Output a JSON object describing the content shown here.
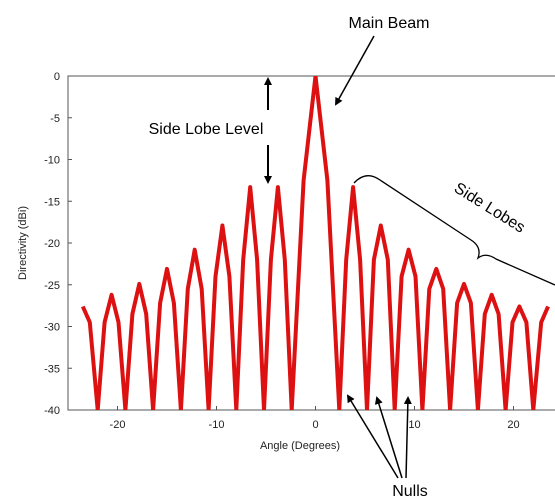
{
  "chart_data": {
    "type": "line",
    "title": "",
    "xlabel": "Angle (Degrees)",
    "ylabel": "Directivity (dBi)",
    "xlim": [
      -25,
      25
    ],
    "ylim": [
      -40,
      0
    ],
    "xticks": [
      -20,
      -10,
      0,
      10,
      20
    ],
    "yticks": [
      0,
      -5,
      -10,
      -15,
      -20,
      -25,
      -30,
      -35,
      -40
    ],
    "grid": false,
    "series": [
      {
        "color": "#dd1111",
        "x": [
          -23.5,
          -22.8,
          -22,
          -21.3,
          -20.6,
          -19.9,
          -19.2,
          -18.5,
          -17.8,
          -17.1,
          -16.4,
          -15.7,
          -15,
          -14.3,
          -13.6,
          -12.9,
          -12.2,
          -11.5,
          -10.8,
          -10.1,
          -9.4,
          -8.7,
          -8,
          -7.3,
          -6.6,
          -5.9,
          -5.2,
          -4.5,
          -3.8,
          -3.1,
          -2.4,
          -1.2,
          0,
          1.2,
          2.4,
          3.1,
          3.8,
          4.5,
          5.2,
          5.9,
          6.6,
          7.3,
          8,
          8.7,
          9.4,
          10.1,
          10.8,
          11.5,
          12.2,
          12.9,
          13.6,
          14.3,
          15,
          15.7,
          16.4,
          17.1,
          17.8,
          18.5,
          19.2,
          19.9,
          20.6,
          21.3,
          22,
          22.8,
          23.5
        ],
        "y": [
          -27.6,
          -29.5,
          -40,
          -29.5,
          -26.2,
          -29.5,
          -40,
          -28.5,
          -24.9,
          -28.5,
          -40,
          -27.2,
          -23.1,
          -27.2,
          -40,
          -25.5,
          -20.8,
          -25.5,
          -40,
          -24,
          -17.9,
          -24,
          -40,
          -22,
          -13.3,
          -22,
          -40,
          -22,
          -13.3,
          -22,
          -40,
          -12.5,
          0,
          -12.5,
          -40,
          -22,
          -13.3,
          -22,
          -40,
          -22,
          -17.9,
          -22,
          -40,
          -24,
          -20.8,
          -24,
          -40,
          -25.5,
          -23.1,
          -25.5,
          -40,
          -27.2,
          -24.9,
          -27.2,
          -40,
          -28.5,
          -26.2,
          -28.5,
          -40,
          -29.5,
          -27.6,
          -29.5,
          -40,
          -29.5,
          -27.6
        ]
      }
    ],
    "annotations": {
      "main_beam": "Main Beam",
      "side_lobe_level": "Side Lobe Level",
      "side_lobes": "Side Lobes",
      "nulls": "Nulls"
    }
  }
}
